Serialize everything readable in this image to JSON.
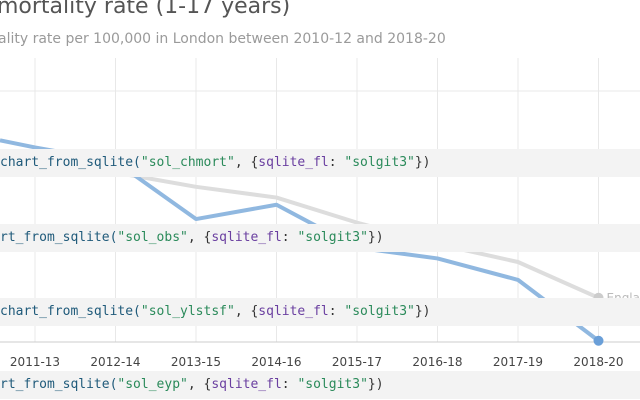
{
  "header": {
    "title": "mortality rate (1-17 years)",
    "subtitle": "ality rate per 100,000 in London between 2010-12 and 2018-20"
  },
  "code_lines": [
    {
      "prefix": "chart_from_sqlite(",
      "table": "\"sol_chmort\"",
      "sep": ", {",
      "key": "sqlite_fl",
      "colon": ": ",
      "value": "\"solgit3\"",
      "suffix": "})"
    },
    {
      "prefix": "rt_from_sqlite(",
      "table": "\"sol_obs\"",
      "sep": ", {",
      "key": "sqlite_fl",
      "colon": ": ",
      "value": "\"solgit3\"",
      "suffix": "})"
    },
    {
      "prefix": "chart_from_sqlite(",
      "table": "\"sol_ylstsf\"",
      "sep": ", {",
      "key": "sqlite_fl",
      "colon": ": ",
      "value": "\"solgit3\"",
      "suffix": "})"
    },
    {
      "prefix": "rt_from_sqlite(",
      "table": "\"sol_eyp\"",
      "sep": ", {",
      "key": "sqlite_fl",
      "colon": ": ",
      "value": "\"solgit3\"",
      "suffix": "})"
    }
  ],
  "colors": {
    "london": "#90b8e0",
    "london_end": "#6a9fd8",
    "england": "#dddddd",
    "england_end": "#cccccc",
    "grid": "#e8e8e8"
  },
  "chart_data": {
    "type": "line",
    "x": [
      "2011-13",
      "2012-14",
      "2013-15",
      "2014-16",
      "2015-17",
      "2016-18",
      "2017-19",
      "2018-20"
    ],
    "series": [
      {
        "name": "Engla",
        "values": [
          15.0,
          15.0,
          14.2,
          13.6,
          12.2,
          11.0,
          10.0,
          8.0
        ]
      },
      {
        "name": "",
        "values": [
          16.4,
          15.6,
          12.4,
          13.2,
          10.8,
          10.2,
          9.0,
          5.6
        ]
      }
    ]
  }
}
